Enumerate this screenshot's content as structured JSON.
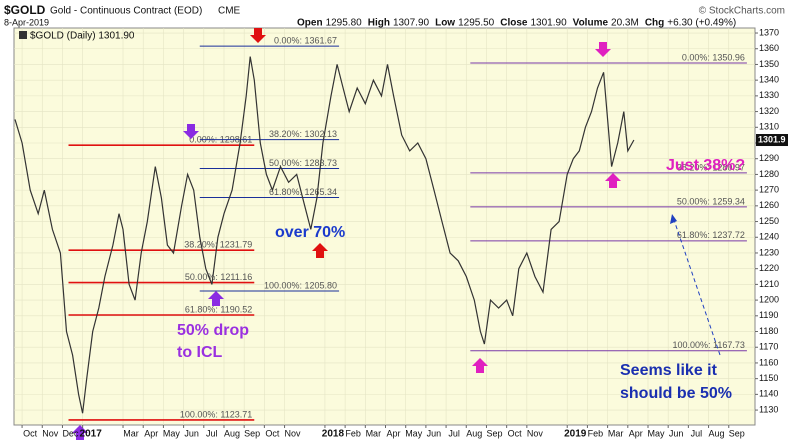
{
  "chart_data": {
    "type": "line",
    "title": "$GOLD",
    "subtitle": "Gold - Continuous Contract (EOD)",
    "exchange": "CME",
    "date": "8-Apr-2019",
    "watermark": "© StockCharts.com",
    "legend_label": "$GOLD (Daily) 1301.90",
    "quote": [
      {
        "name": "Open",
        "text": "1295.80"
      },
      {
        "name": "High",
        "text": "1307.90"
      },
      {
        "name": "Low",
        "text": "1295.50"
      },
      {
        "name": "Close",
        "text": "1301.90"
      },
      {
        "name": "Volume",
        "text": "20.3M"
      },
      {
        "name": "Chg",
        "text": "+6.30 (+0.49%)"
      }
    ],
    "last_price": 1301.9,
    "grid": true,
    "xlim": [
      -0.4,
      36.3
    ],
    "ylim": [
      1120.5,
      1373.2
    ],
    "xticks": [
      {
        "value": 0,
        "label": "Oct"
      },
      {
        "value": 1,
        "label": "Nov"
      },
      {
        "value": 2,
        "label": "Dec"
      },
      {
        "value": 3,
        "label": "2017"
      },
      {
        "value": 5,
        "label": "Mar"
      },
      {
        "value": 6,
        "label": "Apr"
      },
      {
        "value": 7,
        "label": "May"
      },
      {
        "value": 8,
        "label": "Jun"
      },
      {
        "value": 9,
        "label": "Jul"
      },
      {
        "value": 10,
        "label": "Aug"
      },
      {
        "value": 11,
        "label": "Sep"
      },
      {
        "value": 12,
        "label": "Oct"
      },
      {
        "value": 13,
        "label": "Nov"
      },
      {
        "value": 15,
        "label": "2018"
      },
      {
        "value": 16,
        "label": "Feb"
      },
      {
        "value": 17,
        "label": "Mar"
      },
      {
        "value": 18,
        "label": "Apr"
      },
      {
        "value": 19,
        "label": "May"
      },
      {
        "value": 20,
        "label": "Jun"
      },
      {
        "value": 21,
        "label": "Jul"
      },
      {
        "value": 22,
        "label": "Aug"
      },
      {
        "value": 23,
        "label": "Sep"
      },
      {
        "value": 24,
        "label": "Oct"
      },
      {
        "value": 25,
        "label": "Nov"
      },
      {
        "value": 27,
        "label": "2019"
      },
      {
        "value": 28,
        "label": "Feb"
      },
      {
        "value": 29,
        "label": "Mar"
      },
      {
        "value": 30,
        "label": "Apr"
      },
      {
        "value": 31,
        "label": "May"
      },
      {
        "value": 32,
        "label": "Jun"
      },
      {
        "value": 33,
        "label": "Jul"
      },
      {
        "value": 34,
        "label": "Aug"
      },
      {
        "value": 35,
        "label": "Sep"
      }
    ],
    "yticks": [
      1130,
      1140,
      1150,
      1160,
      1170,
      1180,
      1190,
      1200,
      1210,
      1220,
      1230,
      1240,
      1250,
      1260,
      1270,
      1280,
      1290,
      1300,
      1310,
      1320,
      1330,
      1340,
      1350,
      1360,
      1370
    ],
    "series": [
      {
        "name": "$GOLD",
        "color": "#333333",
        "x": [
          -0.35,
          0,
          0.4,
          0.8,
          1.1,
          1.5,
          1.9,
          2.2,
          2.5,
          2.8,
          3.0,
          3.2,
          3.5,
          3.8,
          4.1,
          4.5,
          4.8,
          5.0,
          5.3,
          5.6,
          5.9,
          6.2,
          6.6,
          6.9,
          7.2,
          7.5,
          7.9,
          8.2,
          8.5,
          8.8,
          9.1,
          9.4,
          9.7,
          10.0,
          10.4,
          10.8,
          11.1,
          11.3,
          11.5,
          11.8,
          12.1,
          12.4,
          12.8,
          13.2,
          13.6,
          14.0,
          14.3,
          14.6,
          14.9,
          15.3,
          15.6,
          15.9,
          16.2,
          16.6,
          17.0,
          17.4,
          17.8,
          18.1,
          18.4,
          18.8,
          19.2,
          19.6,
          20.0,
          20.4,
          20.8,
          21.2,
          21.6,
          22.0,
          22.4,
          22.7,
          22.9,
          23.2,
          23.6,
          24.0,
          24.3,
          24.6,
          25.0,
          25.4,
          25.8,
          26.2,
          26.6,
          27.0,
          27.3,
          27.6,
          27.9,
          28.2,
          28.5,
          28.8,
          29.0,
          29.2,
          29.5,
          29.8,
          30.0,
          30.3
        ],
        "values": [
          1315,
          1300,
          1270,
          1255,
          1270,
          1245,
          1230,
          1180,
          1165,
          1140,
          1128,
          1150,
          1180,
          1195,
          1215,
          1235,
          1255,
          1245,
          1210,
          1200,
          1230,
          1250,
          1285,
          1265,
          1235,
          1230,
          1260,
          1280,
          1270,
          1240,
          1220,
          1210,
          1240,
          1255,
          1270,
          1300,
          1330,
          1355,
          1340,
          1300,
          1280,
          1270,
          1285,
          1275,
          1280,
          1260,
          1245,
          1265,
          1300,
          1330,
          1350,
          1335,
          1320,
          1335,
          1325,
          1340,
          1330,
          1350,
          1330,
          1305,
          1295,
          1300,
          1290,
          1270,
          1250,
          1230,
          1225,
          1215,
          1200,
          1180,
          1172,
          1200,
          1195,
          1200,
          1190,
          1220,
          1230,
          1215,
          1205,
          1245,
          1250,
          1280,
          1290,
          1295,
          1310,
          1320,
          1335,
          1345,
          1315,
          1285,
          1300,
          1320,
          1295,
          1301.9
        ]
      }
    ],
    "fib_sets": [
      {
        "color": "#e01010",
        "x": [
          2.3,
          11.5
        ],
        "levels": [
          {
            "value": 1298.61,
            "label": "0.00%: 1298.61"
          },
          {
            "value": 1231.79,
            "label": "38.20%: 1231.79"
          },
          {
            "value": 1211.16,
            "label": "50.00%: 1211.16"
          },
          {
            "value": 1190.52,
            "label": "61.80%: 1190.52"
          },
          {
            "value": 1123.71,
            "label": "100.00%: 1123.71"
          }
        ]
      },
      {
        "color": "#1a2f9a",
        "x": [
          8.8,
          15.7
        ],
        "levels": [
          {
            "value": 1361.67,
            "label": "0.00%: 1361.67"
          },
          {
            "value": 1302.13,
            "label": "38.20%: 1302.13"
          },
          {
            "value": 1283.73,
            "label": "50.00%: 1283.73"
          },
          {
            "value": 1265.34,
            "label": "61.80%: 1265.34"
          },
          {
            "value": 1205.8,
            "label": "100.00%: 1205.80"
          }
        ]
      },
      {
        "color": "#7a3aa8",
        "x": [
          22.2,
          35.9
        ],
        "levels": [
          {
            "value": 1350.96,
            "label": "0.00%: 1350.96"
          },
          {
            "value": 1280.97,
            "label": "38.20%: 1280.97"
          },
          {
            "value": 1259.34,
            "label": "50.00%: 1259.34"
          },
          {
            "value": 1237.72,
            "label": "61.80%: 1237.72"
          },
          {
            "value": 1167.73,
            "label": "100.00%: 1167.73"
          }
        ]
      }
    ],
    "annotations": [
      "over  70%",
      "50% drop",
      "to ICL",
      "Just 38%?",
      "Seems like it",
      "should be 50%"
    ]
  }
}
